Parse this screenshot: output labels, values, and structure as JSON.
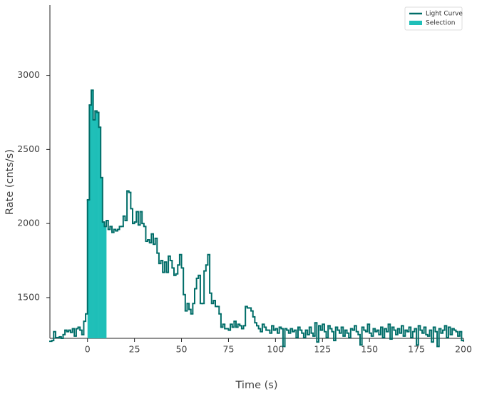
{
  "chart_data": {
    "type": "step",
    "x_label": "Time (s)",
    "y_label": "Rate (cnts/s)",
    "xlim": [
      -20,
      200
    ],
    "ylim": [
      1225,
      3475
    ],
    "xticks": [
      0,
      25,
      50,
      75,
      100,
      125,
      150,
      175,
      200
    ],
    "yticks": [
      1500,
      2000,
      2500,
      3000
    ],
    "legend": "upper right",
    "x": [
      -20,
      -19,
      -18,
      -17,
      -16,
      -15,
      -14,
      -13,
      -12,
      -11,
      -10,
      -9,
      -8,
      -7,
      -6,
      -5,
      -4,
      -3,
      -2,
      -1,
      0,
      1,
      2,
      3,
      4,
      5,
      6,
      7,
      8,
      9,
      10,
      11,
      12,
      13,
      14,
      15,
      16,
      17,
      18,
      19,
      20,
      21,
      22,
      23,
      24,
      25,
      26,
      27,
      28,
      29,
      30,
      31,
      32,
      33,
      34,
      35,
      36,
      37,
      38,
      39,
      40,
      41,
      42,
      43,
      44,
      45,
      46,
      47,
      48,
      49,
      50,
      51,
      52,
      53,
      54,
      55,
      56,
      57,
      58,
      59,
      60,
      61,
      62,
      63,
      64,
      65,
      66,
      67,
      68,
      69,
      70,
      71,
      72,
      73,
      74,
      75,
      76,
      77,
      78,
      79,
      80,
      81,
      82,
      83,
      84,
      85,
      86,
      87,
      88,
      89,
      90,
      91,
      92,
      93,
      94,
      95,
      96,
      97,
      98,
      99,
      100,
      101,
      102,
      103,
      104,
      105,
      106,
      107,
      108,
      109,
      110,
      111,
      112,
      113,
      114,
      115,
      116,
      117,
      118,
      119,
      120,
      121,
      122,
      123,
      124,
      125,
      126,
      127,
      128,
      129,
      130,
      131,
      132,
      133,
      134,
      135,
      136,
      137,
      138,
      139,
      140,
      141,
      142,
      143,
      144,
      145,
      146,
      147,
      148,
      149,
      150,
      151,
      152,
      153,
      154,
      155,
      156,
      157,
      158,
      159,
      160,
      161,
      162,
      163,
      164,
      165,
      166,
      167,
      168,
      169,
      170,
      171,
      172,
      173,
      174,
      175,
      176,
      177,
      178,
      179,
      180,
      181,
      182,
      183,
      184,
      185,
      186,
      187,
      188,
      189,
      190,
      191,
      192,
      193,
      194,
      195,
      196,
      197,
      198,
      199
    ],
    "series": [
      {
        "name": "Light Curve",
        "color": "#006d68",
        "values": [
          1205,
          1210,
          1270,
          1230,
          1230,
          1235,
          1225,
          1250,
          1280,
          1270,
          1280,
          1265,
          1290,
          1240,
          1290,
          1300,
          1280,
          1250,
          1340,
          1390,
          2160,
          2800,
          2900,
          2700,
          2760,
          2750,
          2650,
          2310,
          2010,
          1980,
          2020,
          1960,
          1980,
          1940,
          1960,
          1950,
          1960,
          1980,
          1980,
          2050,
          2020,
          2220,
          2210,
          2100,
          2000,
          2010,
          2080,
          1990,
          2080,
          2000,
          1980,
          1880,
          1890,
          1870,
          1930,
          1860,
          1900,
          1800,
          1730,
          1750,
          1670,
          1740,
          1670,
          1780,
          1750,
          1700,
          1650,
          1660,
          1720,
          1790,
          1700,
          1520,
          1410,
          1460,
          1420,
          1390,
          1460,
          1560,
          1630,
          1650,
          1460,
          1460,
          1680,
          1720,
          1790,
          1530,
          1460,
          1480,
          1440,
          1440,
          1390,
          1300,
          1320,
          1290,
          1290,
          1280,
          1320,
          1300,
          1340,
          1300,
          1320,
          1310,
          1290,
          1310,
          1440,
          1430,
          1430,
          1410,
          1370,
          1330,
          1310,
          1290,
          1270,
          1320,
          1300,
          1280,
          1280,
          1260,
          1310,
          1280,
          1290,
          1260,
          1300,
          1290,
          1170,
          1290,
          1280,
          1260,
          1290,
          1270,
          1280,
          1230,
          1300,
          1280,
          1260,
          1230,
          1280,
          1250,
          1300,
          1260,
          1240,
          1330,
          1200,
          1310,
          1280,
          1320,
          1270,
          1230,
          1310,
          1290,
          1270,
          1210,
          1300,
          1280,
          1260,
          1300,
          1240,
          1280,
          1260,
          1230,
          1290,
          1280,
          1310,
          1270,
          1250,
          1180,
          1300,
          1280,
          1270,
          1320,
          1260,
          1240,
          1290,
          1270,
          1280,
          1250,
          1300,
          1230,
          1290,
          1270,
          1320,
          1220,
          1300,
          1280,
          1250,
          1290,
          1260,
          1310,
          1240,
          1280,
          1270,
          1300,
          1230,
          1270,
          1290,
          1180,
          1310,
          1280,
          1260,
          1300,
          1250,
          1240,
          1280,
          1200,
          1300,
          1270,
          1170,
          1290,
          1260,
          1280,
          1310,
          1230,
          1300,
          1250,
          1290,
          1280,
          1270,
          1240,
          1270,
          1210
        ]
      },
      {
        "name": "Selection",
        "color": "#1fbfb8",
        "range": [
          0,
          10
        ]
      }
    ]
  }
}
